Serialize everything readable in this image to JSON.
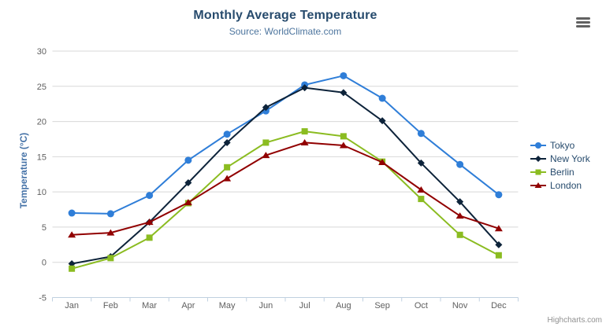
{
  "credit": "Highcharts.com",
  "export_menu": {
    "icon": "hamburger-menu-icon"
  },
  "colors": {
    "background": "#ffffff",
    "title": "#274b6d",
    "subtitle": "#4d759e",
    "axis_title": "#4572a7",
    "axis_labels": "#606060",
    "grid": "#d8d8d8",
    "axis_line": "#c0d0e0",
    "legend_text": "#274b6d",
    "credit": "#909090",
    "menu_icon": "#616161"
  },
  "chart_data": {
    "type": "line",
    "title": "Monthly Average Temperature",
    "subtitle": "Source: WorldClimate.com",
    "categories": [
      "Jan",
      "Feb",
      "Mar",
      "Apr",
      "May",
      "Jun",
      "Jul",
      "Aug",
      "Sep",
      "Oct",
      "Nov",
      "Dec"
    ],
    "series": [
      {
        "name": "Tokyo",
        "color": "#2f7ed8",
        "marker": "circle",
        "values": [
          7.0,
          6.9,
          9.5,
          14.5,
          18.2,
          21.5,
          25.2,
          26.5,
          23.3,
          18.3,
          13.9,
          9.6
        ]
      },
      {
        "name": "New York",
        "color": "#0d233a",
        "marker": "diamond",
        "values": [
          -0.2,
          0.8,
          5.7,
          11.3,
          17.0,
          22.0,
          24.8,
          24.1,
          20.1,
          14.1,
          8.6,
          2.5
        ]
      },
      {
        "name": "Berlin",
        "color": "#8bbc21",
        "marker": "square",
        "values": [
          -0.9,
          0.6,
          3.5,
          8.4,
          13.5,
          17.0,
          18.6,
          17.9,
          14.3,
          9.0,
          3.9,
          1.0
        ]
      },
      {
        "name": "London",
        "color": "#910000",
        "marker": "triangle",
        "values": [
          3.9,
          4.2,
          5.7,
          8.5,
          11.9,
          15.2,
          17.0,
          16.6,
          14.2,
          10.3,
          6.6,
          4.8
        ]
      }
    ],
    "xlabel": "",
    "ylabel": "Temperature (°C)",
    "ylim": [
      -5,
      30
    ],
    "ytick_step": 5,
    "grid": true,
    "legend_position": "right"
  }
}
